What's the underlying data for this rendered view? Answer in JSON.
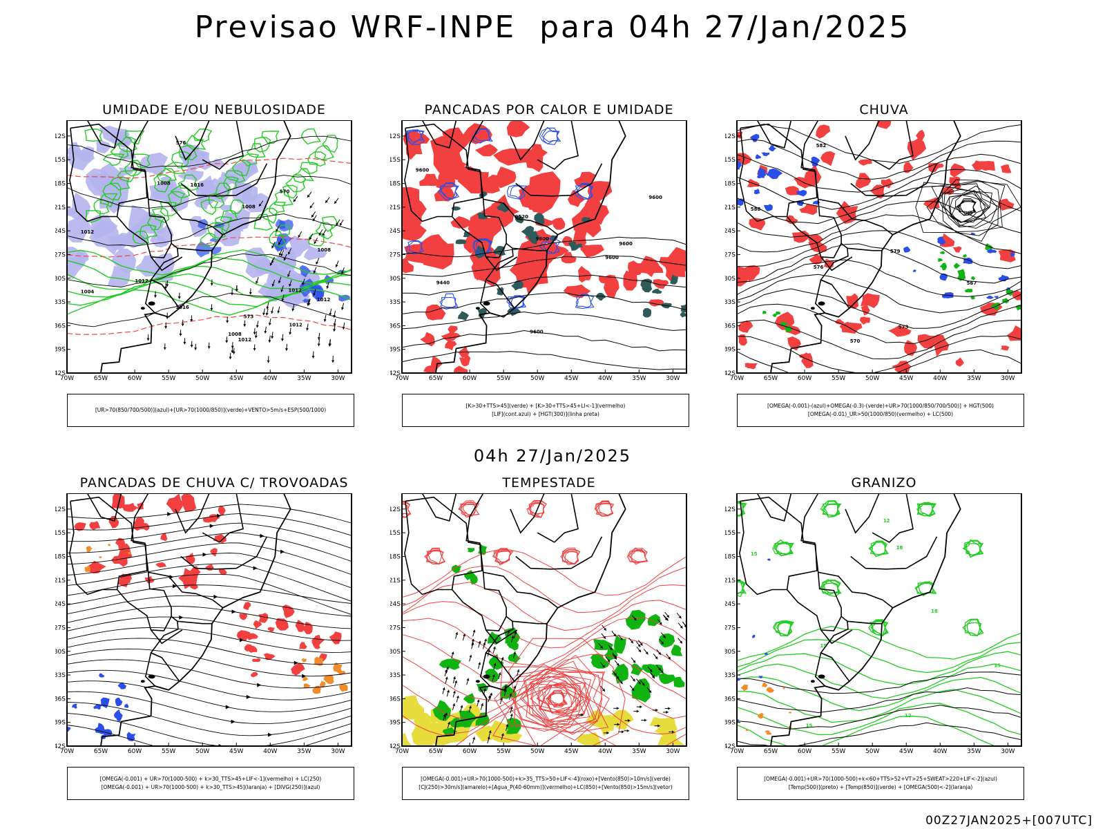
{
  "header": {
    "title": "Previsao WRF-INPE  para 04h 27/Jan/2025"
  },
  "middle": {
    "time_label": "04h 27/Jan/2025"
  },
  "footer": {
    "run_label": "00Z27JAN2025+[007UTC]"
  },
  "colors": {
    "red": "#f24040",
    "green": "#22cc22",
    "blue": "#2a4fe8",
    "lavender": "#b4b4ee",
    "teal": "#2f5a5a",
    "orange": "#f08c2c",
    "yellow": "#e6dc3c",
    "lime": "#11b311"
  },
  "axes": {
    "lat_ticks": [
      "12S",
      "15S",
      "18S",
      "21S",
      "24S",
      "27S",
      "30S",
      "33S",
      "36S",
      "39S",
      "42S"
    ],
    "lon_ticks": [
      "70W",
      "65W",
      "60W",
      "55W",
      "50W",
      "45W",
      "40W",
      "35W",
      "30W"
    ]
  },
  "chart_data": [
    {
      "type": "heatmap",
      "title": "UMIDADE E/OU NEBULOSIDADE",
      "xlabel": "longitude",
      "ylabel": "latitude",
      "xlim": [
        -70,
        -28
      ],
      "ylim": [
        -42,
        -10
      ],
      "legend": [
        "[UR>70(850/700/500)](azul)+[UR>70(1000/850)](verde)+VENTO>5m/s+ESP(500/1000)"
      ],
      "contour_labels": [
        "1012",
        "1012",
        "1012",
        "1012",
        "1008",
        "1008",
        "1008",
        "1016",
        "1016",
        "1012",
        "1012",
        "1008",
        "1004",
        "576",
        "570",
        "573"
      ]
    },
    {
      "type": "heatmap",
      "title": "PANCADAS POR CALOR E UMIDADE",
      "xlabel": "longitude",
      "ylabel": "latitude",
      "xlim": [
        -70,
        -28
      ],
      "ylim": [
        -42,
        -10
      ],
      "legend": [
        "[K>30+TTS>45](verde) + [K>30+TTS>45+LI<-1](vermelho)",
        "[LIF](cont.azul) + [HGT(300)](linha preta)"
      ],
      "contour_labels": [
        "9600",
        "9600",
        "9600",
        "9600",
        "9600",
        "9600",
        "9520",
        "9440"
      ]
    },
    {
      "type": "heatmap",
      "title": "CHUVA",
      "xlabel": "longitude",
      "ylabel": "latitude",
      "xlim": [
        -70,
        -28
      ],
      "ylim": [
        -42,
        -10
      ],
      "legend": [
        "[OMEGA(-0.001)-(azul)+OMEGA(-0.3)-(verde)+UR>70(1000/850/700/500)] + HGT(500)",
        "[OMEGA(-0.01)_UR>50(1000/850)(vermelho) + LC(500)"
      ],
      "contour_labels": [
        "588",
        "582",
        "579",
        "576",
        "573",
        "570",
        "567"
      ]
    },
    {
      "type": "heatmap",
      "title": "PANCADAS DE CHUVA C/ TROVOADAS",
      "xlabel": "longitude",
      "ylabel": "latitude",
      "xlim": [
        -70,
        -28
      ],
      "ylim": [
        -42,
        -10
      ],
      "legend": [
        "[OMEGA(-0.001) + UR>70(1000-500) + k>30_TTS>45+LIF<-1](vermelho) + LC(250)",
        "[OMEGA(-0.001) + UR>70(1000-500) + k>30_TTS>45](laranja) + [DIVG(250)](azul)"
      ]
    },
    {
      "type": "heatmap",
      "title": "TEMPESTADE",
      "xlabel": "longitude",
      "ylabel": "latitude",
      "xlim": [
        -70,
        -28
      ],
      "ylim": [
        -42,
        -10
      ],
      "legend": [
        "[OMEGA(-0.001)+UR>70(1000-500)+k>35_TTS>50+LIF<-4](roxo)+[Vento(850)>10m/s](verde)",
        "[CJ(250)>30m/s](amarelo)+[Agua_P(40-60mm)](vermelho)+LC(850)+[Vento(850)>15m/s](vetor)"
      ]
    },
    {
      "type": "heatmap",
      "title": "GRANIZO",
      "xlabel": "longitude",
      "ylabel": "latitude",
      "xlim": [
        -70,
        -28
      ],
      "ylim": [
        -42,
        -10
      ],
      "legend": [
        "[OMEGA(-0.001)+UR>70(1000-500)+k<60+TTS>52+VT>25+SWEAT>220+LIF<-2](azul)",
        "[Temp(500)](preto) + [Temp(850)](verde) + [OMEGA(500)<-2](laranja)"
      ],
      "contour_labels": [
        "15",
        "15",
        "15",
        "15",
        "18",
        "18",
        "12",
        "12"
      ]
    }
  ]
}
